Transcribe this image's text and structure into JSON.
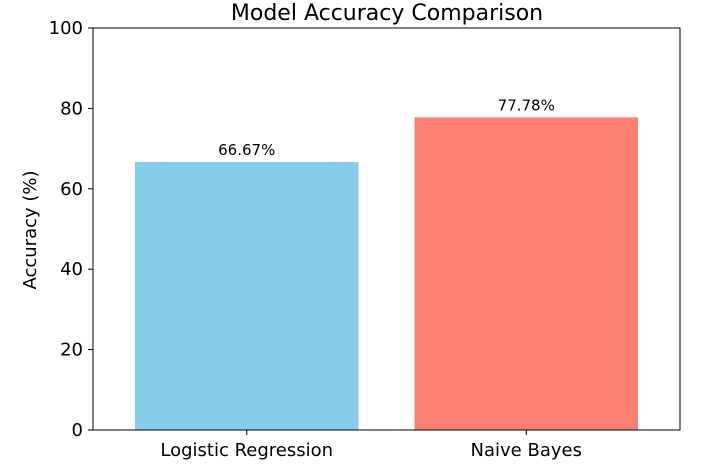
{
  "chart_data": {
    "type": "bar",
    "title": "Model Accuracy Comparison",
    "xlabel": "",
    "ylabel": "Accuracy (%)",
    "categories": [
      "Logistic Regression",
      "Naive Bayes"
    ],
    "values": [
      66.67,
      77.78
    ],
    "data_labels": [
      "66.67%",
      "77.78%"
    ],
    "colors": [
      "#87ceeb",
      "#fa8072"
    ],
    "ylim": [
      0,
      100
    ],
    "yticks": [
      0,
      20,
      40,
      60,
      80,
      100
    ],
    "grid": false,
    "legend": "none"
  }
}
